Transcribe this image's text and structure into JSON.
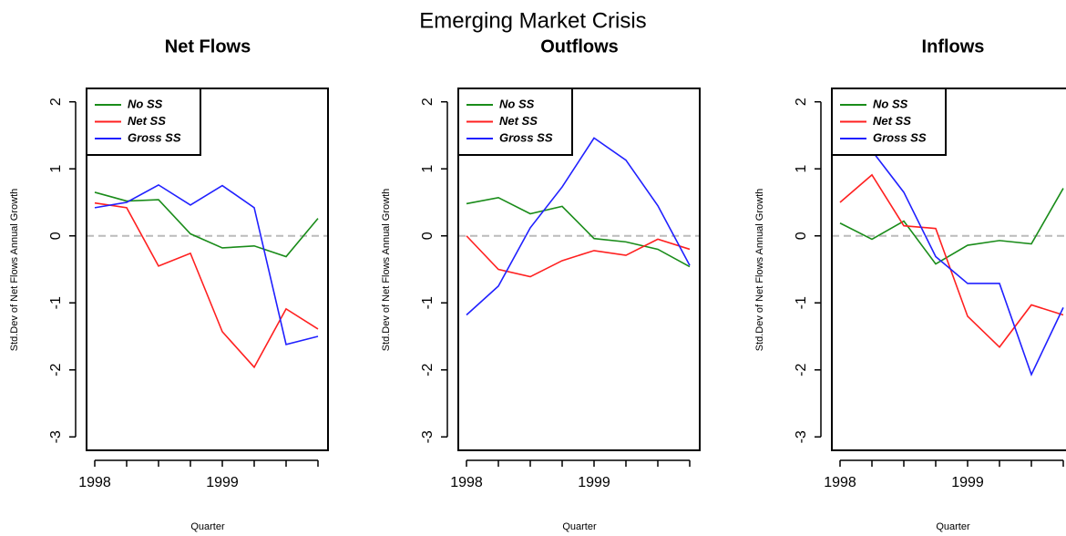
{
  "title": "Emerging Market Crisis",
  "chart_data": [
    {
      "type": "line",
      "title": "Net Flows",
      "y_label": "Std.Dev of Net Flows Annual Growth",
      "x_label": "Quarter",
      "categories": [
        "1998",
        null,
        null,
        null,
        "1999",
        null,
        null,
        null
      ],
      "ylim": [
        -3.2,
        2.2
      ],
      "yticks": [
        -3,
        -2,
        -1,
        0,
        1,
        2
      ],
      "reference_line": 0,
      "legend": "top-left",
      "series": [
        {
          "name": "No SS",
          "color": "#1a8c1a",
          "values": [
            0.65,
            0.52,
            0.54,
            0.03,
            -0.18,
            -0.15,
            -0.31,
            0.26
          ]
        },
        {
          "name": "Net SS",
          "color": "#ff2020",
          "values": [
            0.49,
            0.42,
            -0.45,
            -0.26,
            -1.43,
            -1.96,
            -1.09,
            -1.39
          ]
        },
        {
          "name": "Gross SS",
          "color": "#2020ff",
          "values": [
            0.42,
            0.5,
            0.76,
            0.46,
            0.75,
            0.42,
            -1.62,
            -1.5
          ]
        }
      ]
    },
    {
      "type": "line",
      "title": "Outflows",
      "y_label": "Std.Dev of Net Flows Annual Growth",
      "x_label": "Quarter",
      "categories": [
        "1998",
        null,
        null,
        null,
        "1999",
        null,
        null,
        null
      ],
      "ylim": [
        -3.2,
        2.2
      ],
      "yticks": [
        -3,
        -2,
        -1,
        0,
        1,
        2
      ],
      "reference_line": 0,
      "legend": "top-left",
      "series": [
        {
          "name": "No SS",
          "color": "#1a8c1a",
          "values": [
            0.48,
            0.57,
            0.33,
            0.44,
            -0.04,
            -0.09,
            -0.2,
            -0.46
          ]
        },
        {
          "name": "Net SS",
          "color": "#ff2020",
          "values": [
            0,
            -0.5,
            -0.61,
            -0.37,
            -0.22,
            -0.29,
            -0.05,
            -0.2
          ]
        },
        {
          "name": "Gross SS",
          "color": "#2020ff",
          "values": [
            -1.18,
            -0.75,
            0.12,
            0.73,
            1.46,
            1.13,
            0.45,
            -0.44
          ]
        }
      ]
    },
    {
      "type": "line",
      "title": "Inflows",
      "y_label": "Std.Dev of Net Flows Annual Growth",
      "x_label": "Quarter",
      "categories": [
        "1998",
        null,
        null,
        null,
        "1999",
        null,
        null,
        null
      ],
      "ylim": [
        -3.2,
        2.2
      ],
      "yticks": [
        -3,
        -2,
        -1,
        0,
        1,
        2
      ],
      "reference_line": 0,
      "legend": "top-left",
      "series": [
        {
          "name": "No SS",
          "color": "#1a8c1a",
          "values": [
            0.19,
            -0.05,
            0.22,
            -0.42,
            -0.14,
            -0.07,
            -0.12,
            0.71
          ]
        },
        {
          "name": "Net SS",
          "color": "#ff2020",
          "values": [
            0.5,
            0.91,
            0.15,
            0.11,
            -1.2,
            -1.66,
            -1.03,
            -1.18
          ]
        },
        {
          "name": "Gross SS",
          "color": "#2020ff",
          "values": [
            1.59,
            1.27,
            0.65,
            -0.31,
            -0.71,
            -0.71,
            -2.07,
            -1.07
          ]
        }
      ]
    }
  ]
}
